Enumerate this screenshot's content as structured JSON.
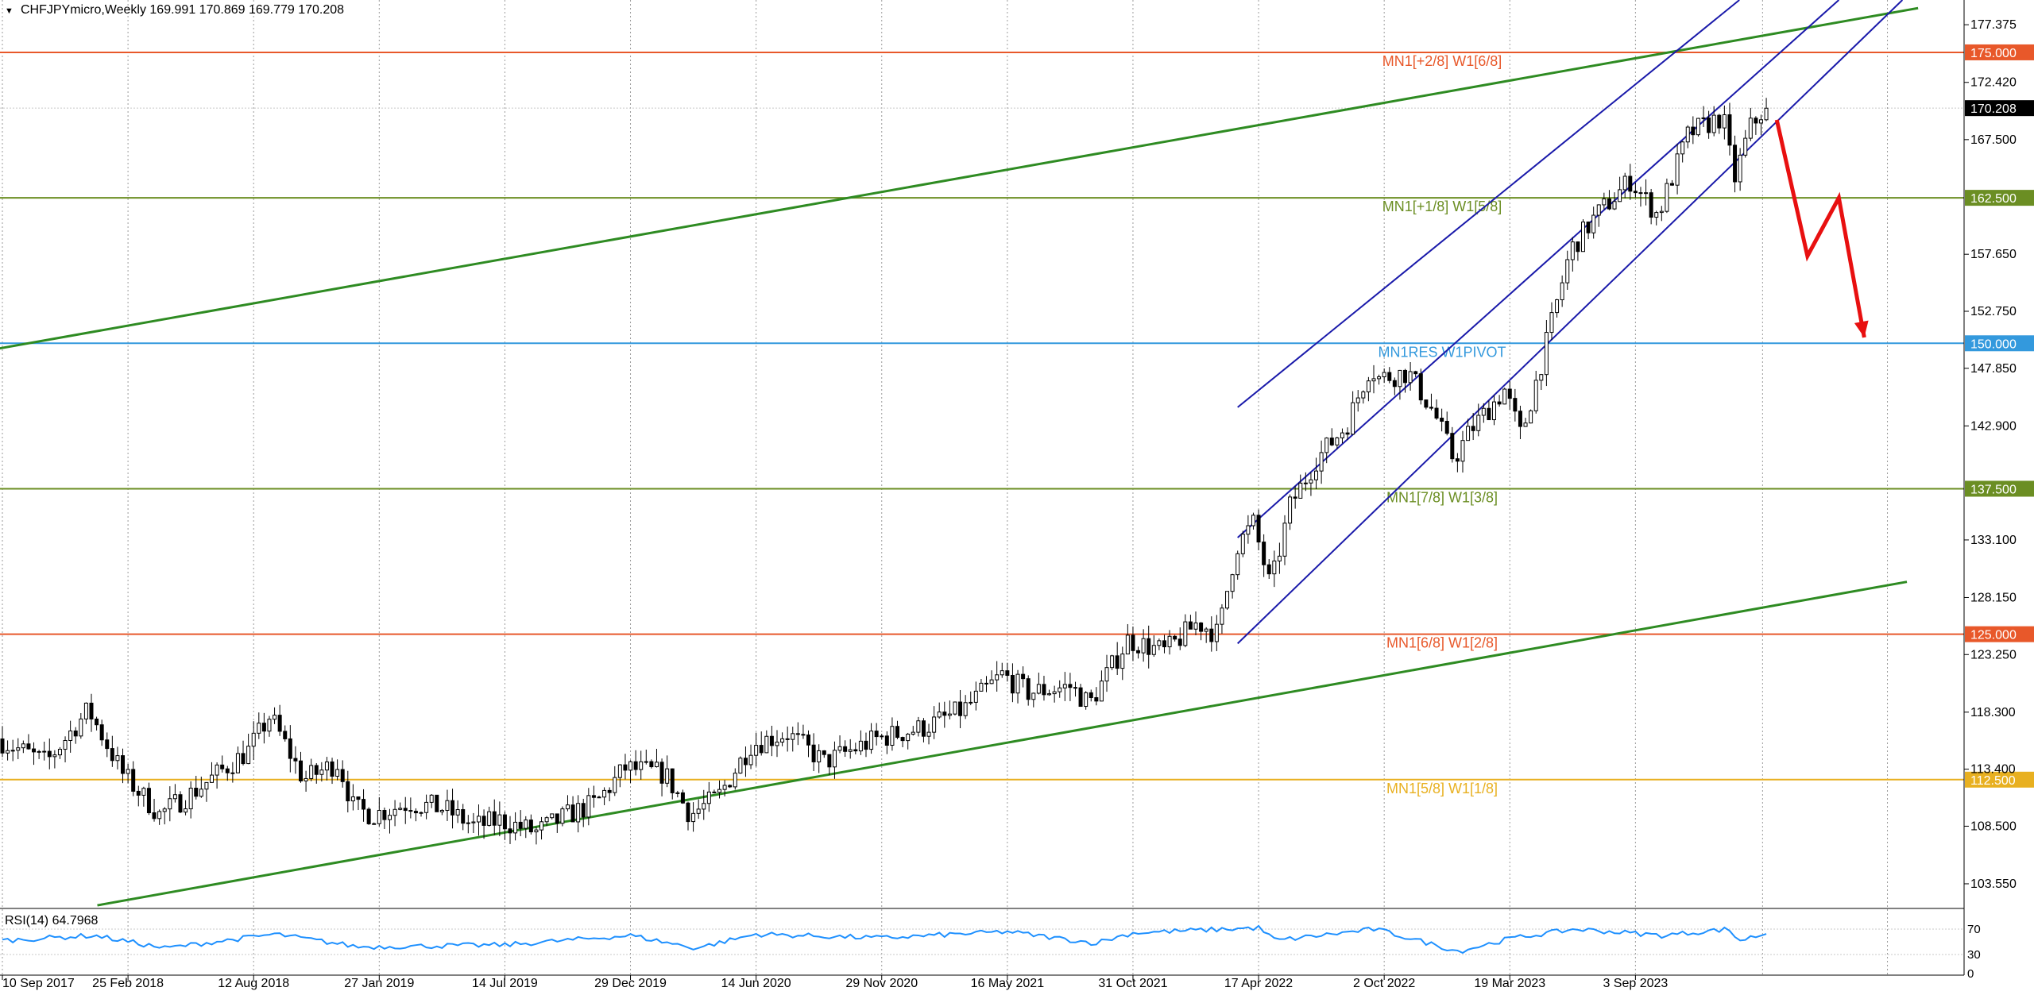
{
  "header": {
    "symbol_info": "CHFJPYmicro,Weekly  169.991 170.869 169.779 170.208"
  },
  "rsi": {
    "label": "RSI(14) 64.7968",
    "ticks": [
      "70",
      "30",
      "0"
    ]
  },
  "price_axis_labels": [
    "177.375",
    "172.420",
    "167.500",
    "157.650",
    "152.750",
    "147.850",
    "142.900",
    "133.100",
    "128.150",
    "123.250",
    "118.300",
    "113.400",
    "108.500",
    "103.550"
  ],
  "time_axis_labels": [
    "10 Sep 2017",
    "25 Feb 2018",
    "12 Aug 2018",
    "27 Jan 2019",
    "14 Jul 2019",
    "29 Dec 2019",
    "14 Jun 2020",
    "29 Nov 2020",
    "16 May 2021",
    "31 Oct 2021",
    "17 Apr 2022",
    "2 Oct 2022",
    "19 Mar 2023",
    "3 Sep 2023"
  ],
  "levels": [
    {
      "label": "MN1[+2/8] W1[6/8]",
      "value": "175.000",
      "color": "#E8582A"
    },
    {
      "label": "MN1[+1/8] W1[5/8]",
      "value": "162.500",
      "color": "#6B8E23"
    },
    {
      "label": "MN1RES W1PIVOT",
      "value": "150.000",
      "color": "#3399DD"
    },
    {
      "label": "MN1[7/8] W1[3/8]",
      "value": "137.500",
      "color": "#6B8E23"
    },
    {
      "label": "MN1[6/8] W1[2/8]",
      "value": "125.000",
      "color": "#E8582A"
    },
    {
      "label": "MN1[5/8] W1[1/8]",
      "value": "112.500",
      "color": "#E8B020"
    }
  ],
  "current_price": "170.208",
  "chart_data": {
    "type": "candlestick",
    "title": "CHFJPYmicro,Weekly",
    "ylim": [
      101.5,
      179.5
    ],
    "x_range": [
      "2017-09-10",
      "2024-08-31"
    ],
    "price_path": [
      [
        "2017-09-10",
        116.0
      ],
      [
        "2017-11-15",
        114.0
      ],
      [
        "2018-01-10",
        118.5
      ],
      [
        "2018-02-25",
        113.0
      ],
      [
        "2018-04-15",
        109.5
      ],
      [
        "2018-06-01",
        111.5
      ],
      [
        "2018-08-12",
        115.0
      ],
      [
        "2018-09-10",
        118.0
      ],
      [
        "2018-10-25",
        112.5
      ],
      [
        "2018-12-10",
        114.0
      ],
      [
        "2018-12-31",
        110.0
      ],
      [
        "2019-01-27",
        109.5
      ],
      [
        "2019-03-15",
        110.5
      ],
      [
        "2019-05-01",
        110.0
      ],
      [
        "2019-06-10",
        108.5
      ],
      [
        "2019-07-14",
        109.0
      ],
      [
        "2019-09-01",
        108.0
      ],
      [
        "2019-10-15",
        109.5
      ],
      [
        "2019-11-20",
        110.5
      ],
      [
        "2019-12-29",
        113.5
      ],
      [
        "2020-02-20",
        113.0
      ],
      [
        "2020-03-25",
        109.5
      ],
      [
        "2020-05-01",
        111.0
      ],
      [
        "2020-06-14",
        115.5
      ],
      [
        "2020-08-01",
        116.5
      ],
      [
        "2020-09-20",
        114.0
      ],
      [
        "2020-11-29",
        116.0
      ],
      [
        "2021-02-01",
        117.0
      ],
      [
        "2021-03-25",
        118.5
      ],
      [
        "2021-05-16",
        121.5
      ],
      [
        "2021-06-20",
        120.0
      ],
      [
        "2021-08-15",
        120.5
      ],
      [
        "2021-09-10",
        119.0
      ],
      [
        "2021-10-31",
        124.5
      ],
      [
        "2021-12-20",
        123.5
      ],
      [
        "2022-02-01",
        126.0
      ],
      [
        "2022-03-01",
        125.0
      ],
      [
        "2022-03-25",
        132.5
      ],
      [
        "2022-04-17",
        134.5
      ],
      [
        "2022-05-10",
        129.0
      ],
      [
        "2022-06-05",
        136.0
      ],
      [
        "2022-07-10",
        140.0
      ],
      [
        "2022-08-20",
        143.0
      ],
      [
        "2022-09-20",
        148.0
      ],
      [
        "2022-10-02",
        147.0
      ],
      [
        "2022-11-10",
        147.5
      ],
      [
        "2022-12-15",
        144.0
      ],
      [
        "2023-01-10",
        140.0
      ],
      [
        "2023-02-01",
        142.5
      ],
      [
        "2023-03-19",
        146.0
      ],
      [
        "2023-04-10",
        142.0
      ],
      [
        "2023-05-10",
        149.0
      ],
      [
        "2023-06-15",
        158.0
      ],
      [
        "2023-07-20",
        161.0
      ],
      [
        "2023-09-03",
        164.0
      ],
      [
        "2023-10-10",
        161.0
      ],
      [
        "2023-11-20",
        168.0
      ],
      [
        "2024-01-05",
        169.5
      ],
      [
        "2024-01-20",
        164.0
      ],
      [
        "2024-02-10",
        168.5
      ],
      [
        "2024-03-01",
        170.2
      ]
    ],
    "rsi_path": [
      [
        "2017-09-10",
        52
      ],
      [
        "2018-01-10",
        60
      ],
      [
        "2018-04-15",
        40
      ],
      [
        "2018-09-10",
        62
      ],
      [
        "2018-12-31",
        42
      ],
      [
        "2019-07-14",
        45
      ],
      [
        "2019-12-29",
        60
      ],
      [
        "2020-03-25",
        40
      ],
      [
        "2020-06-14",
        62
      ],
      [
        "2020-11-29",
        56
      ],
      [
        "2021-05-16",
        66
      ],
      [
        "2021-09-10",
        48
      ],
      [
        "2021-10-31",
        64
      ],
      [
        "2022-04-17",
        72
      ],
      [
        "2022-05-10",
        52
      ],
      [
        "2022-09-20",
        70
      ],
      [
        "2023-01-10",
        35
      ],
      [
        "2023-03-19",
        55
      ],
      [
        "2023-06-15",
        70
      ],
      [
        "2023-10-10",
        60
      ],
      [
        "2024-01-05",
        70
      ],
      [
        "2024-01-20",
        52
      ],
      [
        "2024-03-01",
        64.8
      ]
    ],
    "trendlines": [
      {
        "color": "#2E8B22",
        "from": [
          "2017-09-01",
          149.5
        ],
        "to": [
          "2024-09-15",
          178.8
        ]
      },
      {
        "color": "#2E8B22",
        "from": [
          "2018-01-15",
          101.7
        ],
        "to": [
          "2024-08-31",
          129.5
        ]
      },
      {
        "color": "#1A1AAA",
        "from": [
          "2022-03-20",
          144.5
        ],
        "to": [
          "2024-01-20",
          179.5
        ]
      },
      {
        "color": "#1A1AAA",
        "from": [
          "2022-03-20",
          133.3
        ],
        "to": [
          "2024-06-01",
          179.5
        ]
      },
      {
        "color": "#1A1AAA",
        "from": [
          "2022-03-20",
          124.2
        ],
        "to": [
          "2024-08-25",
          179.5
        ]
      }
    ],
    "forecast_arrow": [
      [
        "2024-03-10",
        169.2
      ],
      [
        "2024-04-20",
        157.5
      ],
      [
        "2024-06-01",
        162.5
      ],
      [
        "2024-07-05",
        150.5
      ]
    ]
  }
}
